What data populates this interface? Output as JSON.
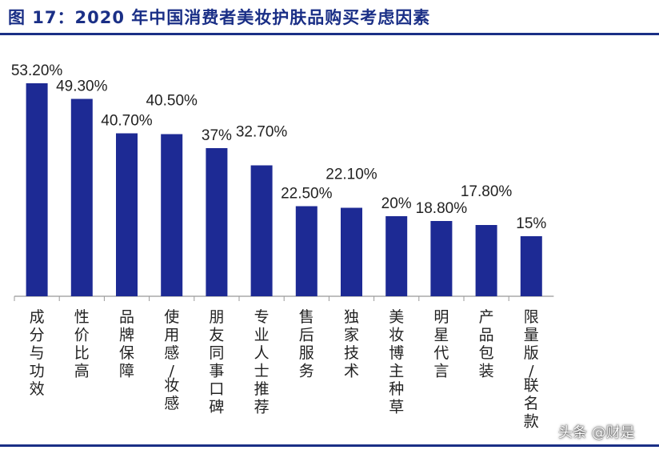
{
  "header": {
    "title": "图 17：2020 年中国消费者美妆护肤品购买考虑因素"
  },
  "watermark": "头条 @财是",
  "colors": {
    "bar": "#1d2a94",
    "title": "#1a2f86",
    "axis": "#999999",
    "text": "#222222"
  },
  "chart_data": {
    "type": "bar",
    "title": "",
    "xlabel": "",
    "ylabel": "",
    "ylim": [
      0,
      60
    ],
    "grid": false,
    "categories": [
      "成分与功效",
      "性价比高",
      "品牌保障",
      "使用感/妆感",
      "朋友同事口碑",
      "专业人士推荐",
      "售后服务",
      "独家技术",
      "美妆博主种草",
      "明星代言",
      "产品包装",
      "限量版/联名款"
    ],
    "values": [
      53.2,
      49.3,
      40.7,
      40.5,
      37,
      32.7,
      22.5,
      22.1,
      20,
      18.8,
      17.8,
      15
    ],
    "value_labels": [
      "53.20%",
      "49.30%",
      "40.70%",
      "40.50%",
      "37%",
      "32.70%",
      "22.50%",
      "22.10%",
      "20%",
      "18.80%",
      "17.80%",
      "15%"
    ]
  }
}
